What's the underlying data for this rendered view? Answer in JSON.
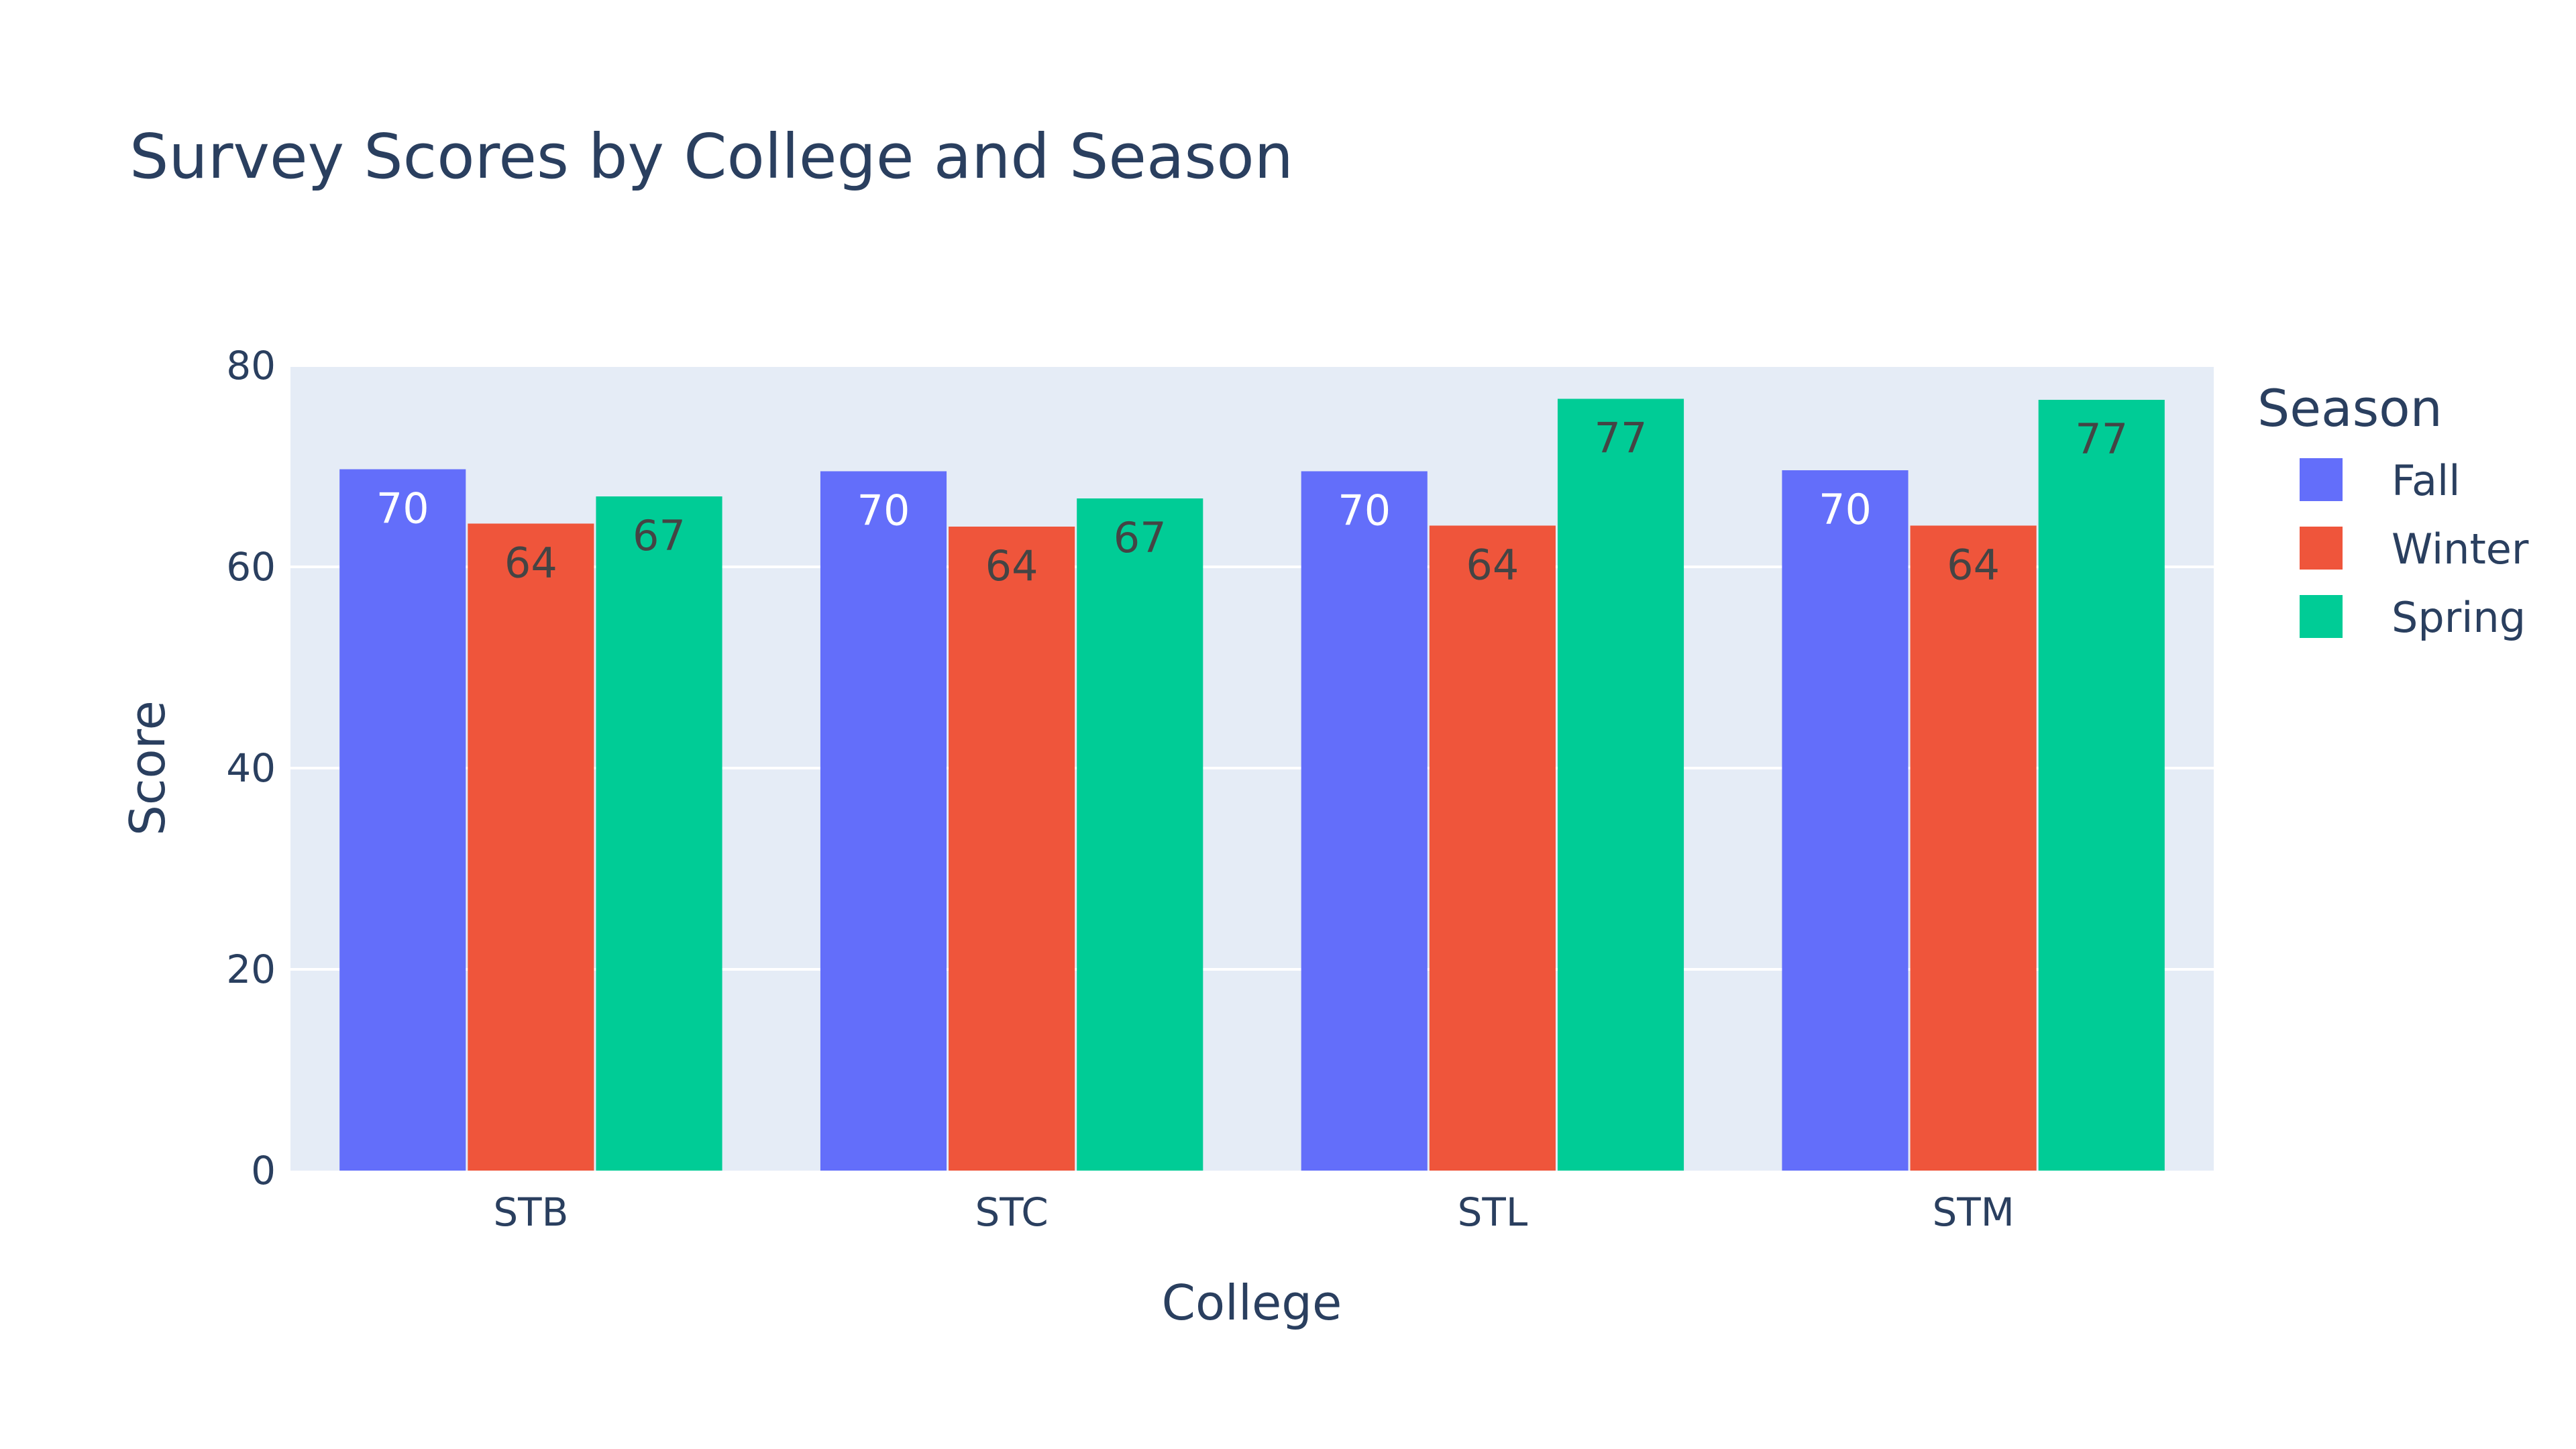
{
  "chart_data": {
    "type": "bar",
    "title": "Survey Scores by College and Season",
    "xlabel": "College",
    "ylabel": "Score",
    "categories": [
      "STB",
      "STC",
      "STL",
      "STM"
    ],
    "series": [
      {
        "name": "Fall",
        "color": "#636efa",
        "values": [
          69.7,
          69.5,
          69.5,
          69.6
        ],
        "labels": [
          "70",
          "70",
          "70",
          "70"
        ]
      },
      {
        "name": "Winter",
        "color": "#ef553b",
        "values": [
          64.3,
          64.0,
          64.1,
          64.1
        ],
        "labels": [
          "64",
          "64",
          "64",
          "64"
        ]
      },
      {
        "name": "Spring",
        "color": "#00cc96",
        "values": [
          67.0,
          66.8,
          76.7,
          76.6
        ],
        "labels": [
          "67",
          "67",
          "77",
          "77"
        ]
      }
    ],
    "ylim": [
      0,
      80
    ],
    "yticks": [
      "0",
      "20",
      "40",
      "60",
      "80"
    ],
    "legend": {
      "title": "Season",
      "placement": "right"
    },
    "grid": true,
    "plot_background": "#e5ecf6"
  }
}
